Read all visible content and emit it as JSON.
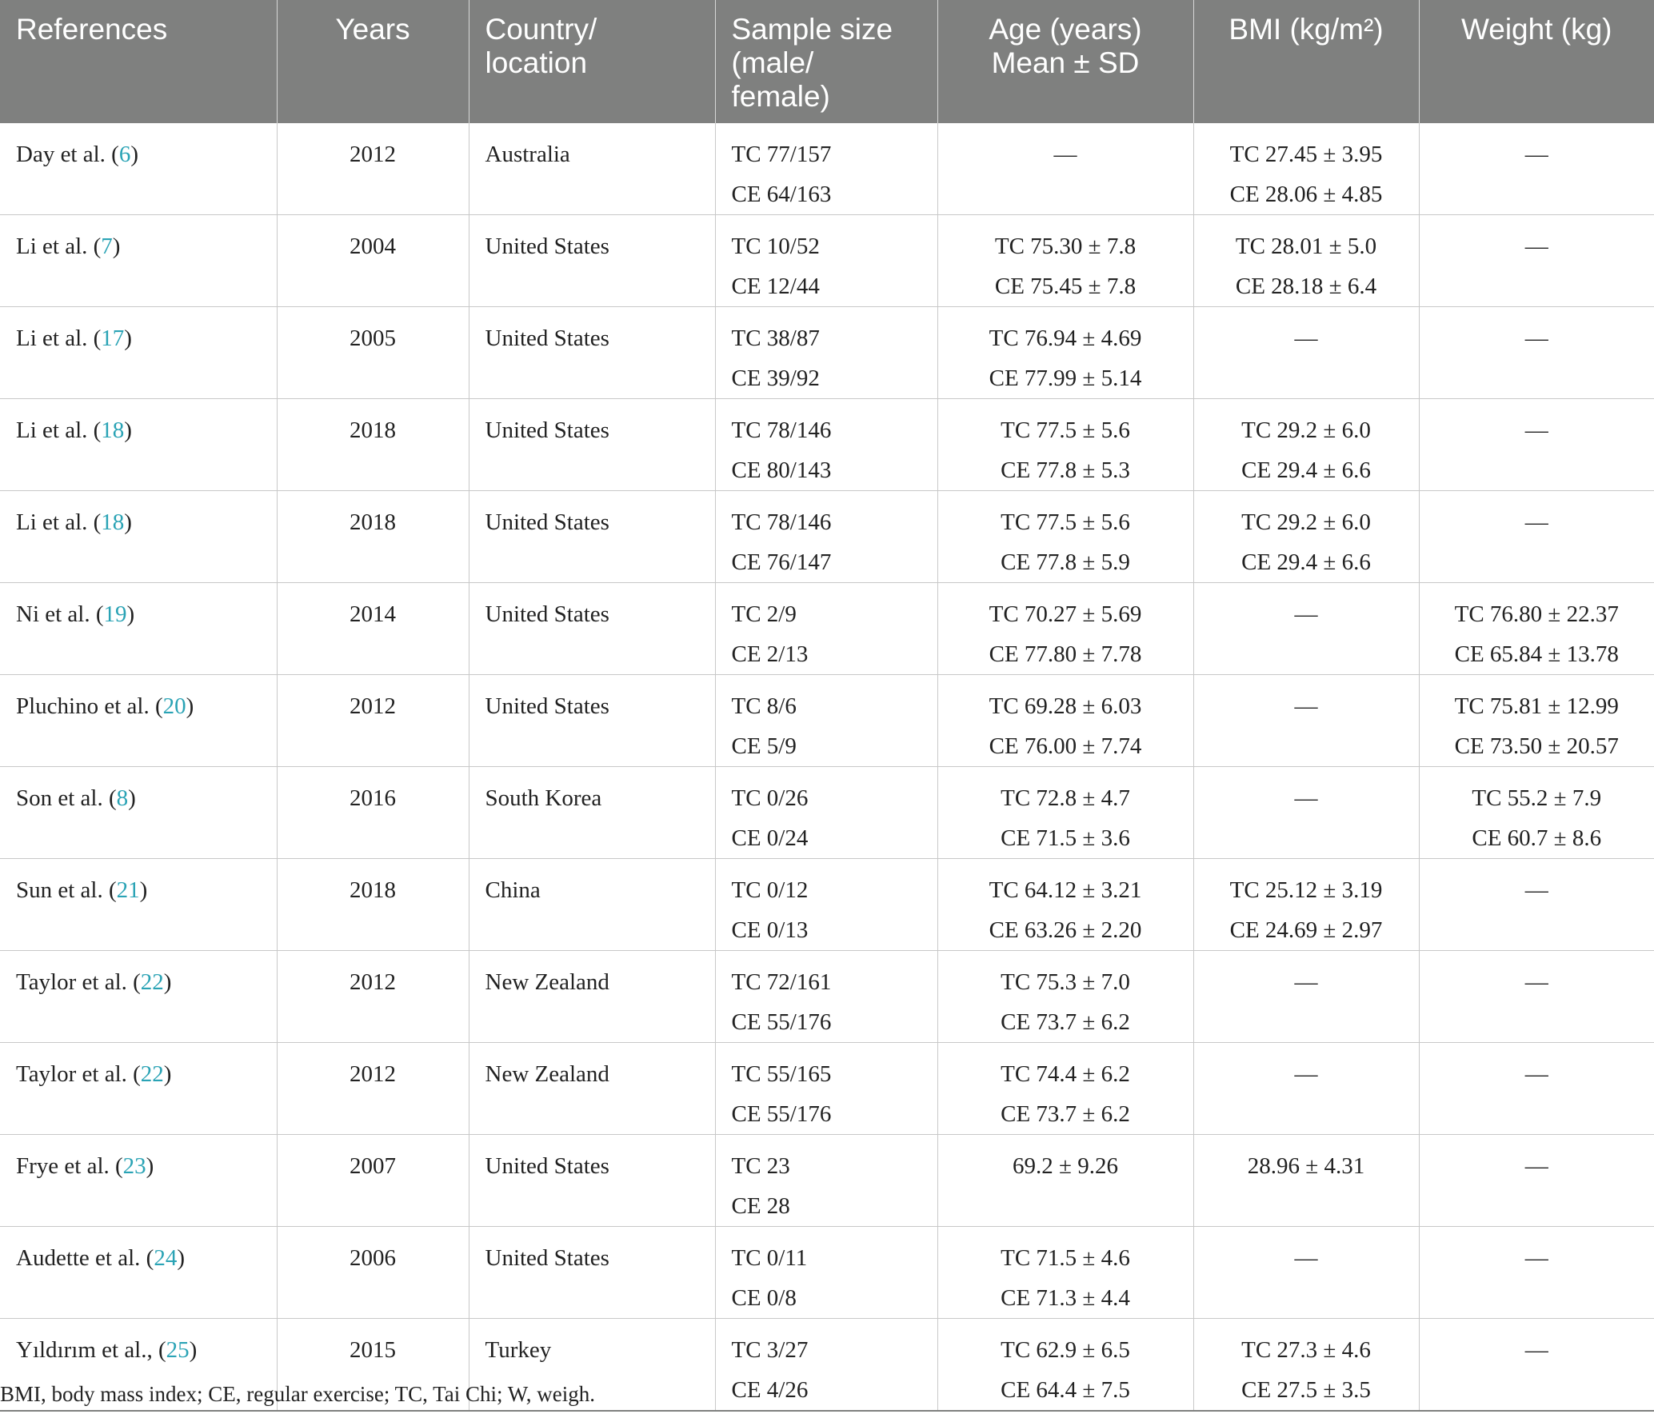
{
  "headers": [
    {
      "text": "References",
      "align": "left"
    },
    {
      "text": "Years",
      "align": "center"
    },
    {
      "text": "Country/\nlocation",
      "align": "left"
    },
    {
      "text": "Sample size\n(male/\nfemale)",
      "align": "left"
    },
    {
      "text": "Age (years)\nMean ± SD",
      "align": "center"
    },
    {
      "text": "BMI (kg/m²)",
      "align": "center"
    },
    {
      "text": "Weight (kg)",
      "align": "center"
    }
  ],
  "rows": [
    {
      "author": "Day et al. (",
      "ref": "6",
      "year": "2012",
      "country": "Australia",
      "sample": [
        "TC 77/157",
        "CE 64/163"
      ],
      "age": [
        "—"
      ],
      "bmi": [
        "TC 27.45 ± 3.95",
        "CE 28.06 ± 4.85"
      ],
      "weight": [
        "—"
      ]
    },
    {
      "author": "Li et al. (",
      "ref": "7",
      "year": "2004",
      "country": "United States",
      "sample": [
        "TC 10/52",
        "CE 12/44"
      ],
      "age": [
        "TC 75.30 ± 7.8",
        "CE 75.45 ± 7.8"
      ],
      "bmi": [
        "TC 28.01 ± 5.0",
        "CE 28.18 ± 6.4"
      ],
      "weight": [
        "—"
      ]
    },
    {
      "author": "Li et al. (",
      "ref": "17",
      "year": "2005",
      "country": "United States",
      "sample": [
        "TC 38/87",
        "CE 39/92"
      ],
      "age": [
        "TC 76.94 ± 4.69",
        "CE 77.99 ± 5.14"
      ],
      "bmi": [
        "—"
      ],
      "weight": [
        "—"
      ]
    },
    {
      "author": "Li et al. (",
      "ref": "18",
      "year": "2018",
      "country": "United States",
      "sample": [
        "TC 78/146",
        "CE 80/143"
      ],
      "age": [
        "TC 77.5 ± 5.6",
        "CE 77.8 ± 5.3"
      ],
      "bmi": [
        "TC 29.2 ± 6.0",
        "CE 29.4 ± 6.6"
      ],
      "weight": [
        "—"
      ]
    },
    {
      "author": "Li et al. (",
      "ref": "18",
      "year": "2018",
      "country": "United States",
      "sample": [
        "TC 78/146",
        "CE 76/147"
      ],
      "age": [
        "TC 77.5 ± 5.6",
        "CE 77.8 ± 5.9"
      ],
      "bmi": [
        "TC 29.2 ± 6.0",
        "CE 29.4 ± 6.6"
      ],
      "weight": [
        "—"
      ]
    },
    {
      "author": "Ni et al. (",
      "ref": "19",
      "year": "2014",
      "country": "United States",
      "sample": [
        "TC 2/9",
        "CE 2/13"
      ],
      "age": [
        "TC 70.27 ± 5.69",
        "CE 77.80 ± 7.78"
      ],
      "bmi": [
        "—"
      ],
      "weight": [
        "TC 76.80 ± 22.37",
        "CE 65.84 ± 13.78"
      ]
    },
    {
      "author": "Pluchino et al. (",
      "ref": "20",
      "year": "2012",
      "country": "United States",
      "sample": [
        "TC 8/6",
        "CE 5/9"
      ],
      "age": [
        "TC 69.28 ± 6.03",
        "CE 76.00 ± 7.74"
      ],
      "bmi": [
        "—"
      ],
      "weight": [
        "TC 75.81 ± 12.99",
        "CE 73.50 ± 20.57"
      ]
    },
    {
      "author": "Son et al. (",
      "ref": "8",
      "year": "2016",
      "country": "South Korea",
      "sample": [
        "TC 0/26",
        "CE 0/24"
      ],
      "age": [
        "TC 72.8 ± 4.7",
        "CE 71.5 ± 3.6"
      ],
      "bmi": [
        "—"
      ],
      "weight": [
        "TC 55.2 ± 7.9",
        "CE 60.7 ± 8.6"
      ]
    },
    {
      "author": "Sun et al. (",
      "ref": "21",
      "year": "2018",
      "country": "China",
      "sample": [
        "TC 0/12",
        "CE 0/13"
      ],
      "age": [
        "TC 64.12 ± 3.21",
        "CE 63.26 ± 2.20"
      ],
      "bmi": [
        "TC 25.12 ± 3.19",
        "CE 24.69 ± 2.97"
      ],
      "weight": [
        "—"
      ]
    },
    {
      "author": "Taylor et al. (",
      "ref": "22",
      "year": "2012",
      "country": "New Zealand",
      "sample": [
        "TC 72/161",
        "CE 55/176"
      ],
      "age": [
        "TC 75.3 ± 7.0",
        "CE 73.7 ± 6.2"
      ],
      "bmi": [
        "—"
      ],
      "weight": [
        "—"
      ]
    },
    {
      "author": "Taylor et al. (",
      "ref": "22",
      "year": "2012",
      "country": "New Zealand",
      "sample": [
        "TC 55/165",
        "CE 55/176"
      ],
      "age": [
        "TC 74.4 ± 6.2",
        "CE 73.7 ± 6.2"
      ],
      "bmi": [
        "—"
      ],
      "weight": [
        "—"
      ]
    },
    {
      "author": "Frye et al. (",
      "ref": "23",
      "year": "2007",
      "country": "United States",
      "sample": [
        "TC 23",
        "CE 28"
      ],
      "age": [
        "69.2 ± 9.26"
      ],
      "bmi": [
        "28.96 ± 4.31"
      ],
      "weight": [
        "—"
      ]
    },
    {
      "author": "Audette et al. (",
      "ref": "24",
      "year": "2006",
      "country": "United States",
      "sample": [
        "TC 0/11",
        "CE 0/8"
      ],
      "age": [
        "TC 71.5 ± 4.6",
        "CE 71.3 ± 4.4"
      ],
      "bmi": [
        "—"
      ],
      "weight": [
        "—"
      ]
    },
    {
      "author": "Yıldırım et al., (",
      "ref": "25",
      "year": "2015",
      "country": "Turkey",
      "sample": [
        "TC 3/27",
        "CE 4/26"
      ],
      "age": [
        "TC 62.9 ± 6.5",
        "CE 64.4 ± 7.5"
      ],
      "bmi": [
        "TC 27.3 ± 4.6",
        "CE 27.5 ± 3.5"
      ],
      "weight": [
        "—"
      ]
    }
  ],
  "footnote": "BMI, body mass index; CE, regular exercise; TC, Tai Chi; W, weigh.",
  "colors": {
    "header_bg": "#7f807f",
    "header_text": "#ffffff",
    "link": "#2aa3b5",
    "border": "#c8c8c8"
  }
}
